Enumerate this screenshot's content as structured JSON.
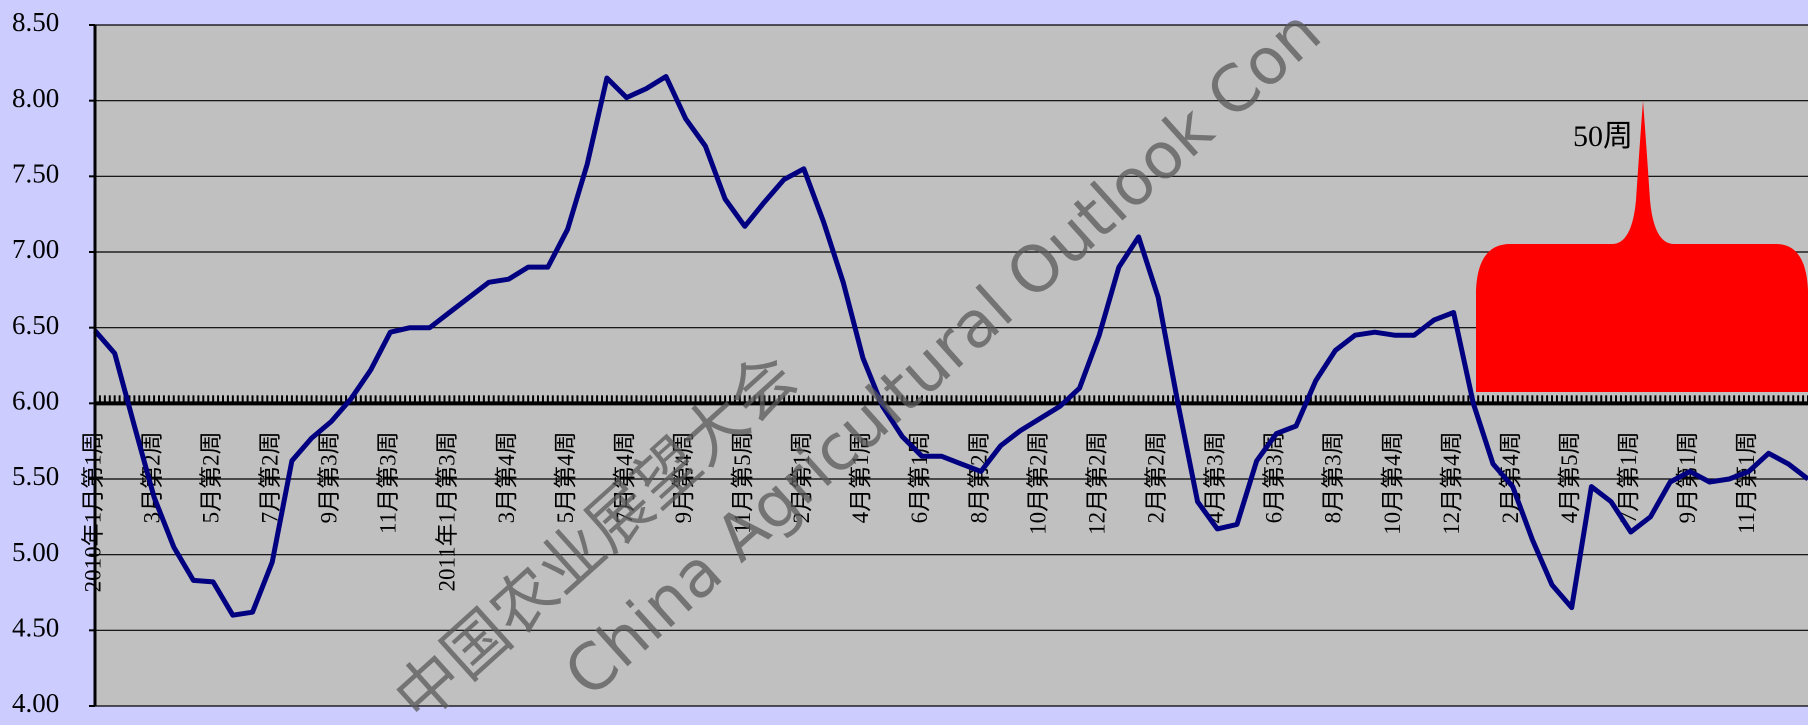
{
  "chart_data": {
    "type": "line",
    "categories": [
      "2010年1月第1周",
      null,
      null,
      "3月第2周",
      null,
      null,
      "5月第2周",
      null,
      null,
      "7月第2周",
      null,
      null,
      "9月第3周",
      null,
      null,
      "11月第3周",
      null,
      null,
      "2011年1月第3周",
      null,
      null,
      "3月第4周",
      null,
      null,
      "5月第4周",
      null,
      null,
      "7月第4周",
      null,
      null,
      "9月第4周",
      null,
      null,
      "11月第5周",
      null,
      null,
      "2月第1周",
      null,
      null,
      "4月第1周",
      null,
      null,
      "6月第1周",
      null,
      null,
      "8月第2周",
      null,
      null,
      "10月第2周",
      null,
      null,
      "12月第2周",
      null,
      null,
      "2月第2周",
      null,
      null,
      "4月第3周",
      null,
      null,
      "6月第3周",
      null,
      null,
      "8月第3周",
      null,
      null,
      "10月第4周",
      null,
      null,
      "12月第4周",
      null,
      null,
      "2月第4周",
      null,
      null,
      "4月第5周",
      null,
      null,
      "7月第1周",
      null,
      null,
      "9月第1周",
      null,
      null,
      "11月第1周",
      null,
      null,
      null
    ],
    "values": [
      6.48,
      6.33,
      5.85,
      5.38,
      5.05,
      4.83,
      4.82,
      4.6,
      4.62,
      4.95,
      5.62,
      5.77,
      5.88,
      6.03,
      6.22,
      6.47,
      6.5,
      6.5,
      6.6,
      6.7,
      6.8,
      6.82,
      6.9,
      6.9,
      7.15,
      7.58,
      8.15,
      8.02,
      8.08,
      8.16,
      7.88,
      7.7,
      7.35,
      7.17,
      7.33,
      7.48,
      7.55,
      7.2,
      6.8,
      6.3,
      5.98,
      5.78,
      5.65,
      5.65,
      5.6,
      5.55,
      5.72,
      5.82,
      5.9,
      5.98,
      6.1,
      6.45,
      6.9,
      7.1,
      6.7,
      6.0,
      5.35,
      5.17,
      5.2,
      5.62,
      5.8,
      5.85,
      6.15,
      6.35,
      6.45,
      6.47,
      6.45,
      6.45,
      6.55,
      6.6,
      6.0,
      5.6,
      5.45,
      5.1,
      4.8,
      4.65,
      5.45,
      5.35,
      5.15,
      5.25,
      5.48,
      5.55,
      5.48,
      5.5,
      5.55,
      5.67,
      5.6,
      5.5
    ],
    "color": "#000080",
    "ylim": [
      4.0,
      8.5
    ],
    "yticks": [
      {
        "value": 4.0,
        "label": "4.00"
      },
      {
        "value": 4.5,
        "label": "4.50"
      },
      {
        "value": 5.0,
        "label": "5.00"
      },
      {
        "value": 5.5,
        "label": "5.50"
      },
      {
        "value": 6.0,
        "label": "6.00"
      },
      {
        "value": 6.5,
        "label": "6.50"
      },
      {
        "value": 7.0,
        "label": "7.00"
      },
      {
        "value": 7.5,
        "label": "7.50"
      },
      {
        "value": 8.0,
        "label": "8.00"
      },
      {
        "value": 8.5,
        "label": "8.50"
      }
    ],
    "grid": true,
    "category_axis_crosses": 6.0,
    "annotation": "50周",
    "watermark": [
      "中国农业展望大会",
      "China Agricultural Outlook Con"
    ]
  }
}
